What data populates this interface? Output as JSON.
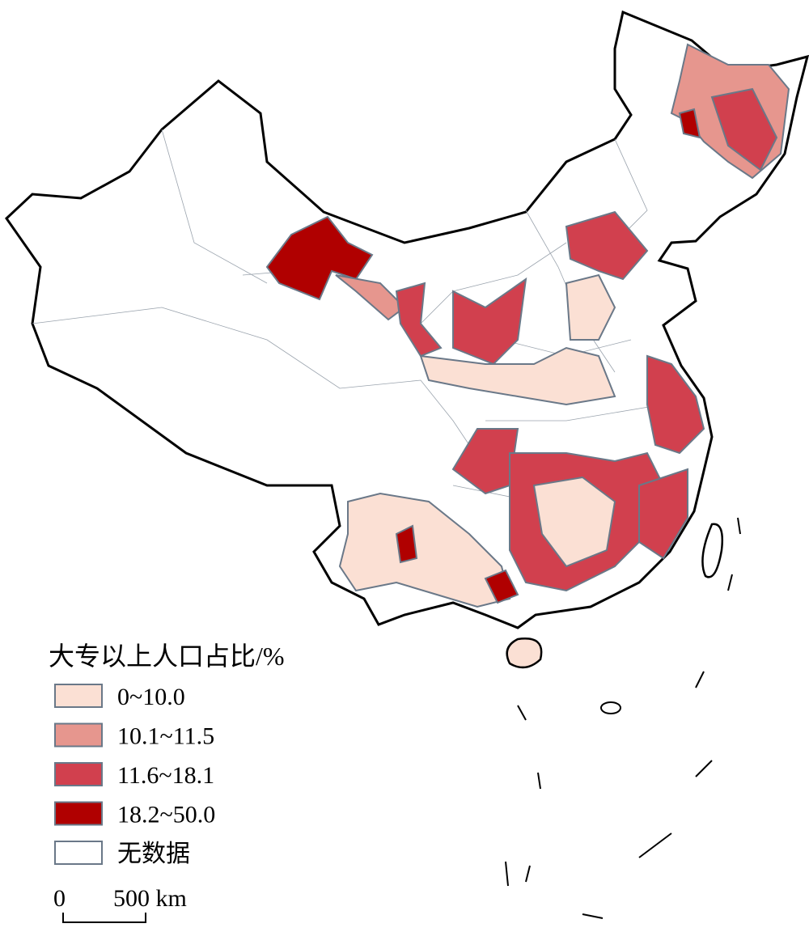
{
  "legend": {
    "title": "大专以上人口占比/%",
    "items": [
      {
        "label": "0~10.0",
        "color": "#fbe0d4"
      },
      {
        "label": "10.1~11.5",
        "color": "#e6968e"
      },
      {
        "label": "11.6~18.1",
        "color": "#d1404e"
      },
      {
        "label": "18.2~50.0",
        "color": "#b00000"
      },
      {
        "label": "无数据",
        "color": "#ffffff"
      }
    ]
  },
  "scale_bar": {
    "start": "0",
    "end": "500 km"
  }
}
